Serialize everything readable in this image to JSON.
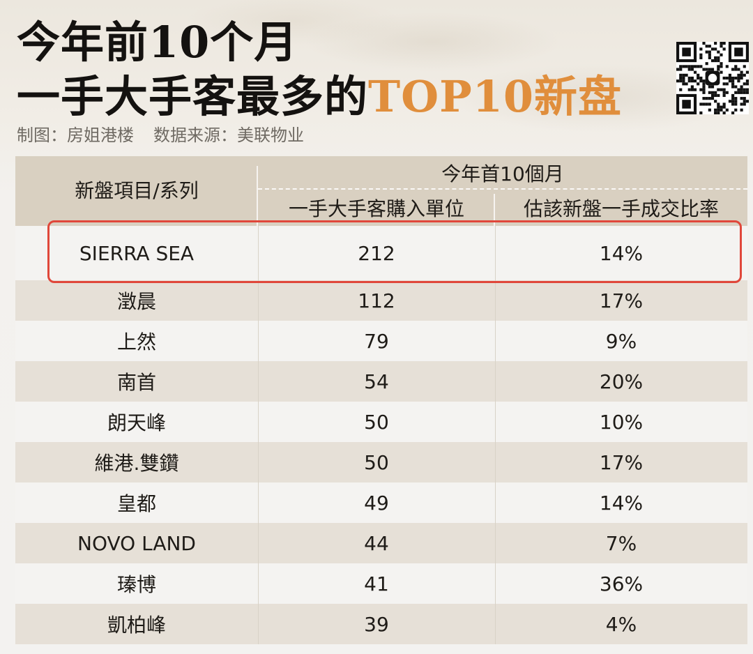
{
  "title": {
    "line1": "今年前10个月",
    "line2_prefix": "一手大手客最多的",
    "line2_accent": "TOP10新盘"
  },
  "credit": {
    "maker": "制图：房姐港楼",
    "source": "数据来源：美联物业"
  },
  "colors": {
    "accent": "#e08e3c",
    "highlight_border": "#e0473a",
    "header_bg": "#d9d0c1",
    "alt_row_bg": "#e6e0d7"
  },
  "icons": {
    "qr": "qr-code-icon"
  },
  "chart_data": {
    "type": "table",
    "title": "今年前10个月 一手大手客最多的TOP10新盘",
    "header_group": "今年首10個月",
    "columns": [
      "新盤項目/系列",
      "一手大手客購入單位",
      "估該新盤一手成交比率"
    ],
    "highlighted_row": 0,
    "rows": [
      [
        "SIERRA SEA",
        "212",
        "14%"
      ],
      [
        "澂晨",
        "112",
        "17%"
      ],
      [
        "上然",
        "79",
        "9%"
      ],
      [
        "南首",
        "54",
        "20%"
      ],
      [
        "朗天峰",
        "50",
        "10%"
      ],
      [
        "維港.雙鑽",
        "50",
        "17%"
      ],
      [
        "皇都",
        "49",
        "14%"
      ],
      [
        "NOVO LAND",
        "44",
        "7%"
      ],
      [
        "瑧博",
        "41",
        "36%"
      ],
      [
        "凱柏峰",
        "39",
        "4%"
      ]
    ]
  }
}
